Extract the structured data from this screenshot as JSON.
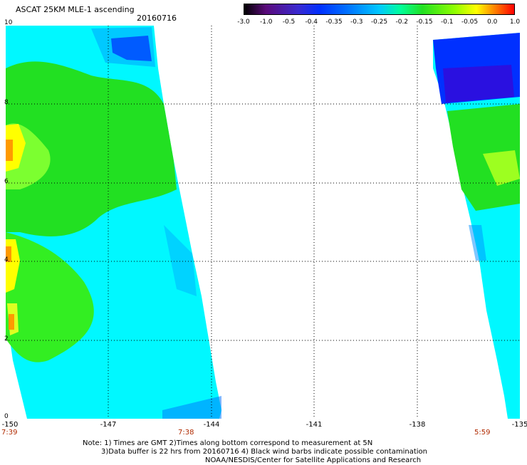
{
  "header": {
    "title": "ASCAT 25KM MLE-1 ascending",
    "date": "20160716"
  },
  "colorbar": {
    "ticks": [
      "-3.0",
      "-1.0",
      "-0.5",
      "-0.4",
      "-0.35",
      "-0.3",
      "-0.25",
      "-0.2",
      "-0.15",
      "-0.1",
      "-0.05",
      "0.0",
      "1.0"
    ],
    "colors": [
      "#000000",
      "#5a0a7a",
      "#3a2ad0",
      "#0030ff",
      "#0070ff",
      "#00c8ff",
      "#00ff99",
      "#22e022",
      "#90ff00",
      "#ffff00",
      "#ff9000",
      "#ff0000"
    ]
  },
  "map": {
    "lat_ticks": [
      "10",
      "8",
      "6",
      "4",
      "2",
      "0"
    ],
    "lon_ticks": [
      "-150",
      "-147",
      "-144",
      "-141",
      "-138",
      "-135"
    ],
    "lat_range": [
      0,
      10
    ],
    "lon_range": [
      -150,
      -135
    ],
    "gridlines": "dotted",
    "swath_colors": {
      "cyan": "#00f8ff",
      "green": "#22e022",
      "yellow": "#ffff00",
      "orange": "#ff9a00",
      "blue": "#0030ff",
      "dark_blue": "#2a10e0"
    }
  },
  "times": {
    "left": "7:39",
    "middle": "7:38",
    "right": "5:59"
  },
  "notes": {
    "line1": "Note: 1) Times are GMT 2)Times along bottom correspond to measurement at 5N",
    "line2": "3)Data buffer is 22 hrs from 20160716 4) Black wind barbs indicate possible contamination",
    "line3": "NOAA/NESDIS/Center for Satellite Applications and Research"
  }
}
